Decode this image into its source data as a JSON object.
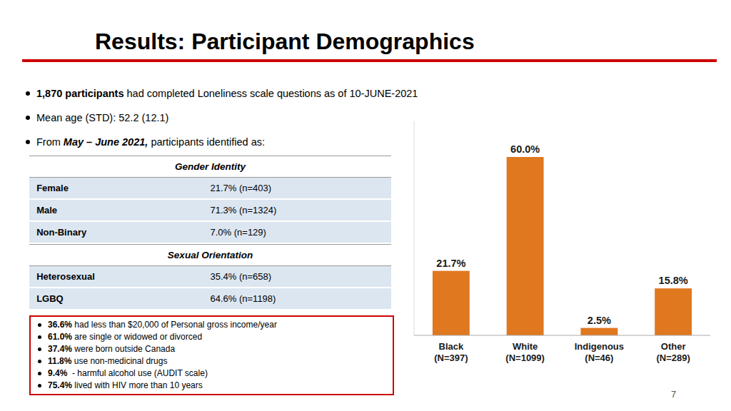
{
  "page": {
    "title": "Results: Participant Demographics",
    "background_color": "#ffffff",
    "red_line_color": "#cc0000",
    "bullet1_bold": "1,870 participants",
    "bullet1_rest": " had completed Loneliness scale questions as of 10-JUNE-2021",
    "bullet2": "Mean age (STD): 52.2 (12.1)",
    "bullet3_prefix": "From ",
    "bullet3_bold": "May – June 2021,",
    "bullet3_rest": " participants identified as:",
    "table_header1": "Gender Identity",
    "table_rows_gender": [
      [
        "Female",
        "21.7% (n=403)"
      ],
      [
        "Male",
        "71.3% (n=1324)"
      ],
      [
        "Non-Binary",
        "7.0% (n=129)"
      ]
    ],
    "table_header2": "Sexual Orientation",
    "table_rows_sex": [
      [
        "Heterosexual",
        "35.4% (n=658)"
      ],
      [
        "LGBQ",
        "64.6% (n=1198)"
      ]
    ],
    "table_bg_color": "#dce6f1",
    "box_bullets": [
      [
        "36.6%",
        " had less than $20,000 of Personal gross income/year"
      ],
      [
        "61.0%",
        " are single or widowed or divorced"
      ],
      [
        "37.4%",
        " were born outside Canada"
      ],
      [
        "11.8%",
        " use non-medicinal drugs"
      ],
      [
        "9.4%",
        "  - harmful alcohol use (AUDIT scale)"
      ],
      [
        "75.4%",
        " lived with HIV more than 10 years"
      ]
    ],
    "box_border_color": "#cc0000",
    "page_number": "7"
  },
  "chart_data": {
    "type": "bar",
    "categories": [
      "Black\n(N=397)",
      "White\n(N=1099)",
      "Indigenous\n(N=46)",
      "Other\n(N=289)"
    ],
    "values": [
      21.7,
      60.0,
      2.5,
      15.8
    ],
    "value_labels": [
      "21.7%",
      "60.0%",
      "2.5%",
      "15.8%"
    ],
    "data_labels": true,
    "color": "#e07820",
    "ylim": [
      0,
      72
    ],
    "grid": false,
    "tick_labels": "x"
  }
}
